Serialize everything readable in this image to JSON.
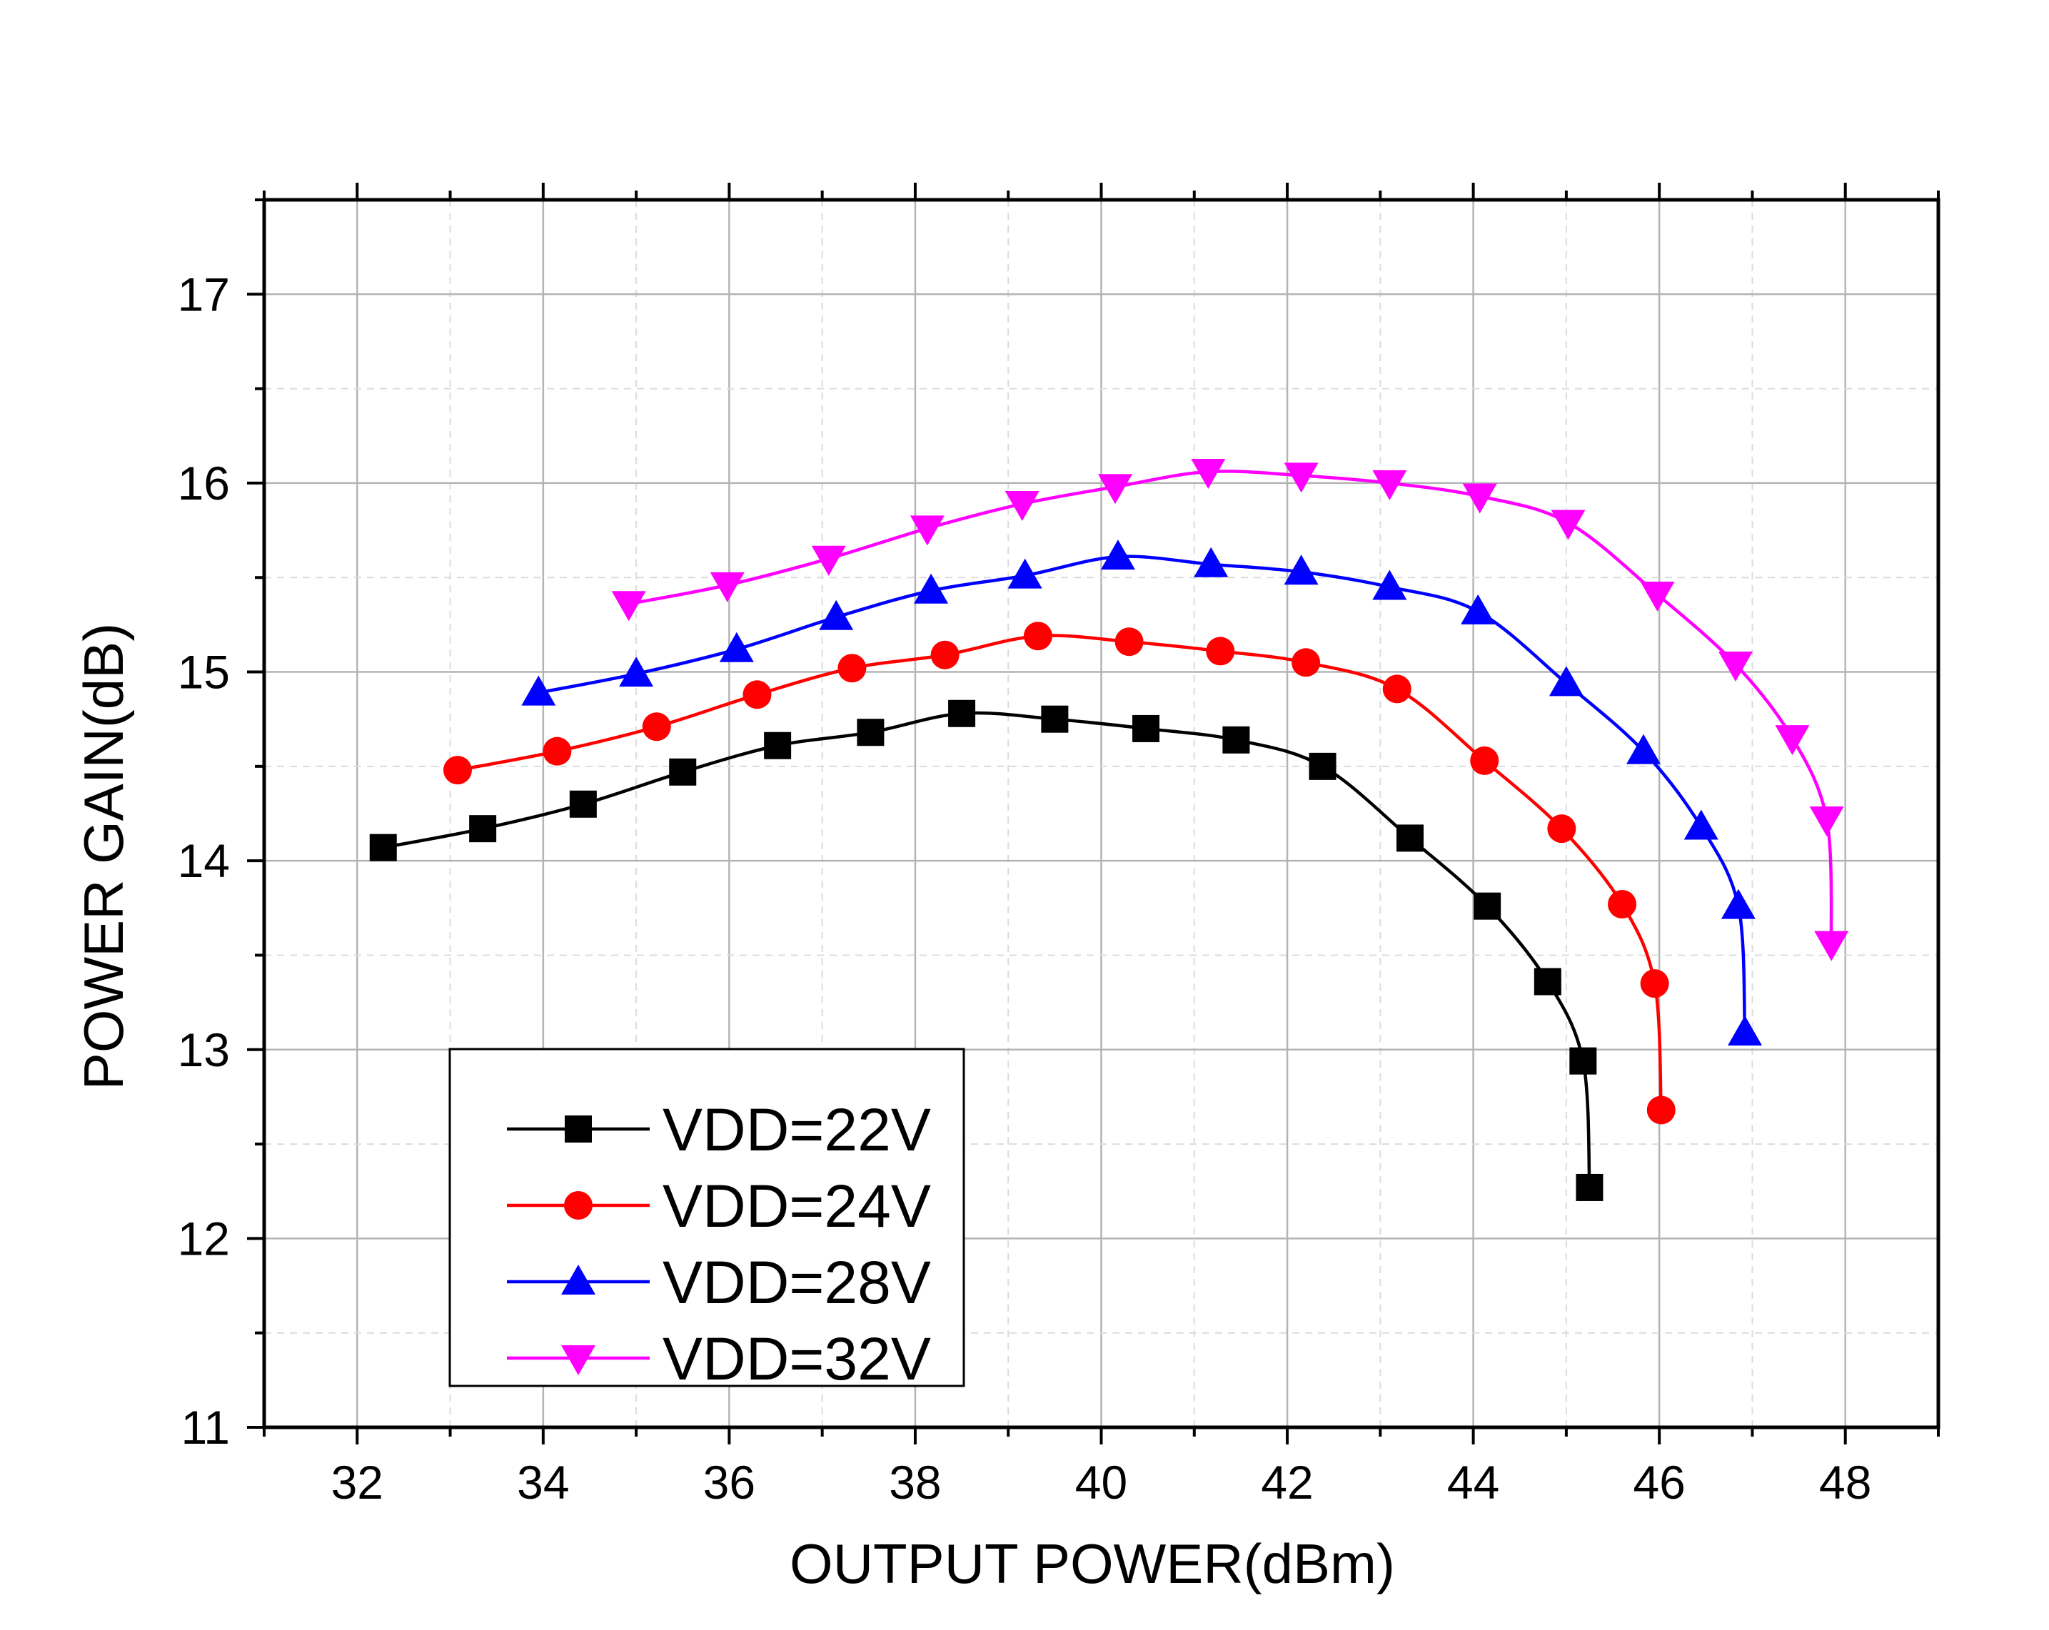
{
  "chart_data": {
    "type": "line",
    "title": "",
    "xlabel": "OUTPUT POWER(dBm)",
    "ylabel": "POWER GAIN(dB)",
    "xlim": [
      31,
      49
    ],
    "ylim": [
      11,
      17.5
    ],
    "x_ticks": [
      32,
      34,
      36,
      38,
      40,
      42,
      44,
      46,
      48
    ],
    "y_ticks": [
      11,
      12,
      13,
      14,
      15,
      16,
      17
    ],
    "grid": true,
    "legend_position": "bottom-left",
    "series": [
      {
        "name": "VDD=22V",
        "color": "#000000",
        "marker": "square",
        "x": [
          32.28,
          33.35,
          34.43,
          35.5,
          36.52,
          37.52,
          38.5,
          39.5,
          40.48,
          41.45,
          42.38,
          43.32,
          44.15,
          44.8,
          45.18,
          45.25
        ],
        "y": [
          14.07,
          14.17,
          14.3,
          14.47,
          14.61,
          14.68,
          14.78,
          14.75,
          14.7,
          14.64,
          14.5,
          14.12,
          13.76,
          13.36,
          12.94,
          12.27
        ]
      },
      {
        "name": "VDD=24V",
        "color": "#ff0000",
        "marker": "circle",
        "x": [
          33.08,
          34.15,
          35.22,
          36.3,
          37.32,
          38.32,
          39.32,
          40.3,
          41.28,
          42.2,
          43.18,
          44.12,
          44.95,
          45.6,
          45.95,
          46.02
        ],
        "y": [
          14.48,
          14.58,
          14.71,
          14.88,
          15.02,
          15.09,
          15.19,
          15.16,
          15.11,
          15.05,
          14.91,
          14.53,
          14.17,
          13.77,
          13.35,
          12.68
        ]
      },
      {
        "name": "VDD=28V",
        "color": "#0000ff",
        "marker": "triangle-up",
        "x": [
          33.95,
          35.0,
          36.08,
          37.15,
          38.17,
          39.18,
          40.18,
          41.18,
          42.15,
          43.1,
          44.05,
          45.0,
          45.83,
          46.45,
          46.85,
          46.92
        ],
        "y": [
          14.89,
          14.99,
          15.12,
          15.29,
          15.43,
          15.51,
          15.61,
          15.57,
          15.53,
          15.45,
          15.32,
          14.94,
          14.58,
          14.18,
          13.76,
          13.09
        ]
      },
      {
        "name": "VDD=32V",
        "color": "#ff00ff",
        "marker": "triangle-down",
        "x": [
          34.92,
          35.98,
          37.07,
          38.13,
          39.15,
          40.15,
          41.15,
          42.15,
          43.1,
          44.07,
          45.02,
          45.98,
          46.82,
          47.43,
          47.8,
          47.85
        ],
        "y": [
          15.36,
          15.46,
          15.6,
          15.76,
          15.89,
          15.98,
          16.06,
          16.04,
          16.0,
          15.93,
          15.79,
          15.41,
          15.04,
          14.65,
          14.22,
          13.56
        ]
      }
    ]
  }
}
